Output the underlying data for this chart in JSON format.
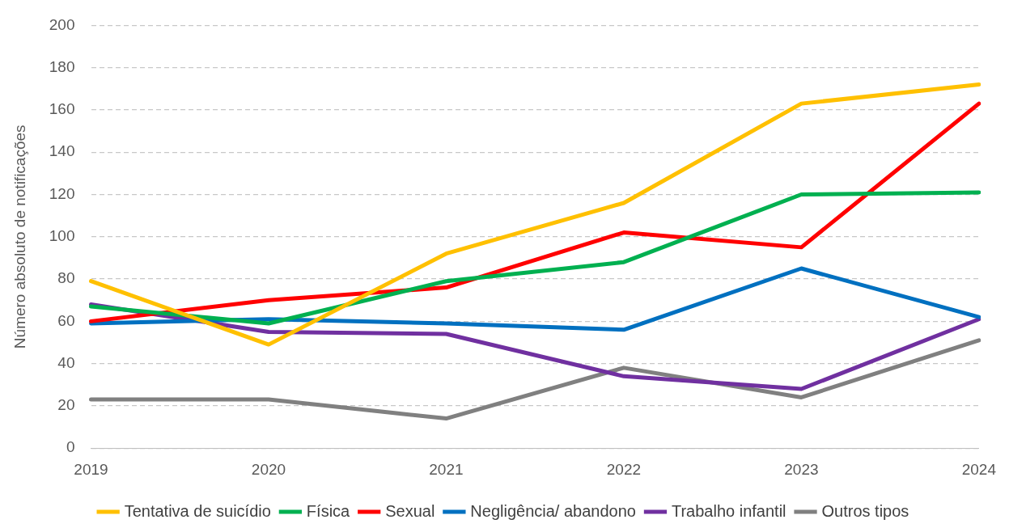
{
  "chart_data": {
    "type": "line",
    "ylabel": "Número absoluto de notificações",
    "categories": [
      "2019",
      "2020",
      "2021",
      "2022",
      "2023",
      "2024"
    ],
    "series": [
      {
        "name": "Tentativa de suicídio",
        "color": "#ffc000",
        "values": [
          79,
          49,
          92,
          116,
          163,
          172
        ]
      },
      {
        "name": "Física",
        "color": "#00b050",
        "values": [
          67,
          59,
          79,
          88,
          120,
          121
        ]
      },
      {
        "name": "Sexual",
        "color": "#ff0000",
        "values": [
          60,
          70,
          76,
          102,
          95,
          163
        ]
      },
      {
        "name": "Negligência/ abandono",
        "color": "#0070c0",
        "values": [
          59,
          61,
          59,
          56,
          85,
          62
        ]
      },
      {
        "name": "Trabalho infantil",
        "color": "#7030a0",
        "values": [
          68,
          55,
          54,
          34,
          28,
          61
        ]
      },
      {
        "name": "Outros tipos",
        "color": "#808080",
        "values": [
          23,
          23,
          14,
          38,
          24,
          51
        ]
      }
    ],
    "ylim": [
      0,
      200
    ],
    "yticks": [
      0,
      20,
      40,
      60,
      80,
      100,
      120,
      140,
      160,
      180,
      200
    ],
    "grid": "y",
    "legend": "bottom",
    "marker": "none",
    "line_style": "solid"
  }
}
